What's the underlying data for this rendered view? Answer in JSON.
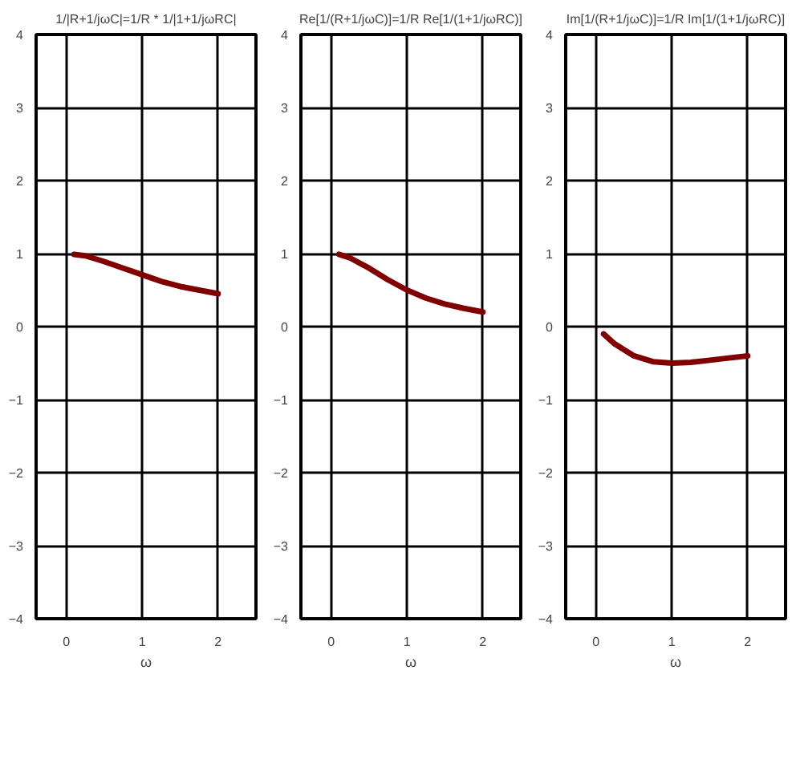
{
  "chart_data": [
    {
      "type": "line",
      "title": "1/|R+1/jωC|=1/R * 1/|1+1/jωRC|",
      "xlabel": "ω",
      "x": [
        0.1,
        0.25,
        0.5,
        0.75,
        1,
        1.25,
        1.5,
        1.75,
        2
      ],
      "series": [
        {
          "color": "#800000",
          "values": [
            0.99,
            0.97,
            0.89,
            0.8,
            0.71,
            0.62,
            0.55,
            0.5,
            0.45
          ]
        }
      ],
      "xlim": [
        -0.4,
        2.5
      ],
      "ylim": [
        -4,
        4
      ],
      "xticks": [
        0,
        1,
        2
      ],
      "yticks": [
        -4,
        -3,
        -2,
        -1,
        0,
        1,
        2,
        3,
        4
      ],
      "grid": true
    },
    {
      "type": "line",
      "title": "Re[1/(R+1/jωC)]=1/R Re[1/(1+1/jωRC)]",
      "xlabel": "ω",
      "x": [
        0.1,
        0.25,
        0.5,
        0.75,
        1,
        1.25,
        1.5,
        1.75,
        2
      ],
      "series": [
        {
          "color": "#800000",
          "values": [
            0.99,
            0.94,
            0.8,
            0.64,
            0.5,
            0.39,
            0.31,
            0.25,
            0.2
          ]
        }
      ],
      "xlim": [
        -0.4,
        2.5
      ],
      "ylim": [
        -4,
        4
      ],
      "xticks": [
        0,
        1,
        2
      ],
      "yticks": [
        -4,
        -3,
        -2,
        -1,
        0,
        1,
        2,
        3,
        4
      ],
      "grid": true
    },
    {
      "type": "line",
      "title": "Im[1/(R+1/jωC)]=1/R Im[1/(1+1/jωRC)]",
      "xlabel": "ω",
      "x": [
        0.1,
        0.25,
        0.5,
        0.75,
        1,
        1.25,
        1.5,
        1.75,
        2
      ],
      "series": [
        {
          "color": "#800000",
          "values": [
            -0.1,
            -0.24,
            -0.4,
            -0.48,
            -0.5,
            -0.49,
            -0.46,
            -0.43,
            -0.4
          ]
        }
      ],
      "xlim": [
        -0.4,
        2.5
      ],
      "ylim": [
        -4,
        4
      ],
      "xticks": [
        0,
        1,
        2
      ],
      "yticks": [
        -4,
        -3,
        -2,
        -1,
        0,
        1,
        2,
        3,
        4
      ],
      "grid": true
    }
  ]
}
